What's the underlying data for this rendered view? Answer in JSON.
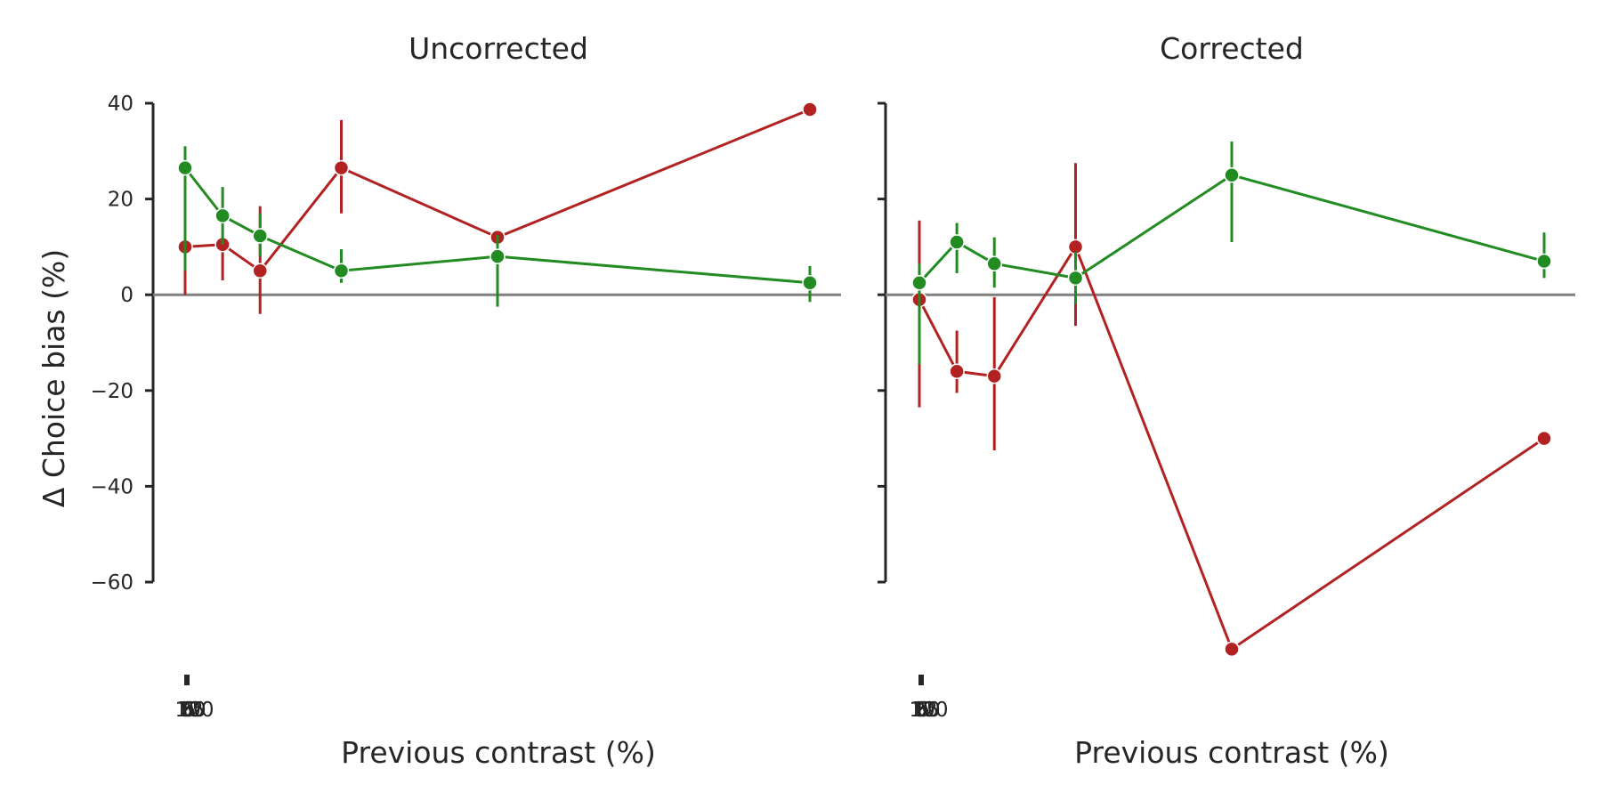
{
  "chart_data": {
    "type": "line",
    "ylabel": "Δ Choice bias (%)",
    "ylim": [
      -75,
      40
    ],
    "yticks": [
      "40",
      "20",
      "0",
      "−20",
      "−40",
      "−60"
    ],
    "ytick_values": [
      40,
      20,
      0,
      -20,
      -40,
      -60
    ],
    "x": [
      0,
      6,
      12,
      25,
      50,
      100
    ],
    "xlim": [
      0,
      100
    ],
    "xticks": [
      "0",
      "6",
      "12",
      "25",
      "50",
      "100"
    ],
    "zero_line": true,
    "colors": {
      "red": "#b22222",
      "green": "#228b22",
      "zero": "#808080",
      "axis": "#262626"
    },
    "panels": [
      {
        "title": "Uncorrected",
        "xlabel": "Previous contrast (%)",
        "series": [
          {
            "color": "red",
            "values": [
              10,
              10.5,
              5,
              26.5,
              12,
              38.7
            ],
            "err_low": [
              0,
              3,
              -4,
              17,
              10,
              38.7
            ],
            "err_high": [
              12,
              12,
              18.5,
              36.5,
              13,
              38.7
            ]
          },
          {
            "color": "green",
            "values": [
              26.5,
              16.5,
              12.3,
              5,
              8,
              2.5
            ],
            "err_low": [
              5,
              10.5,
              8,
              2.5,
              -2.5,
              -1.5
            ],
            "err_high": [
              31,
              22.5,
              17,
              9.5,
              12.5,
              6
            ]
          }
        ]
      },
      {
        "title": "Corrected",
        "xlabel": "Previous contrast (%)",
        "series": [
          {
            "color": "red",
            "values": [
              -1,
              -16,
              -17,
              10,
              -74,
              -30
            ],
            "err_low": [
              -23.5,
              -20.5,
              -32.5,
              -6.5,
              -74,
              -30
            ],
            "err_high": [
              15.5,
              -7.5,
              -0.5,
              27.5,
              -74,
              -30
            ]
          },
          {
            "color": "green",
            "values": [
              2.5,
              11,
              6.5,
              3.5,
              25,
              7
            ],
            "err_low": [
              -14.5,
              4.5,
              1.5,
              -2,
              11,
              3.5
            ],
            "err_high": [
              6.5,
              15,
              12,
              9,
              32,
              13
            ]
          }
        ]
      }
    ]
  }
}
